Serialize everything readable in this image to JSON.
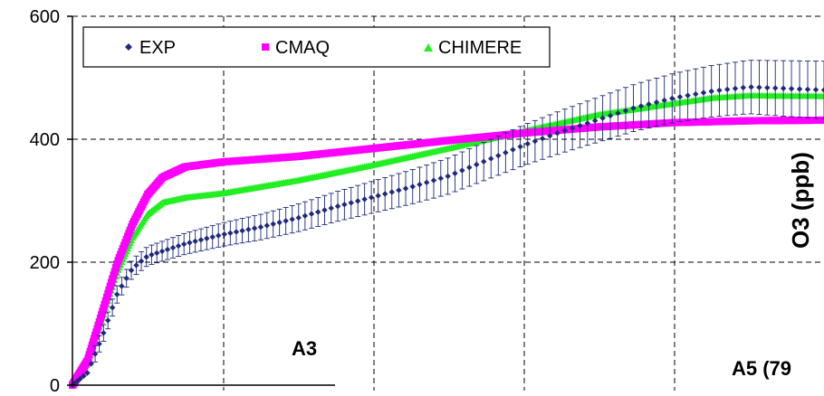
{
  "chart_data": {
    "type": "line",
    "ylabel": "O3 (ppb)",
    "ylim": [
      0,
      600
    ],
    "y_ticks": [
      "0",
      "200",
      "400",
      "600"
    ],
    "grid": true,
    "legend_position": "top-left",
    "annotations": [
      "A3",
      "A5 (79"
    ],
    "series": [
      {
        "name": "EXP",
        "color": "#1f2a7a",
        "marker": "diamond",
        "error_bars": true,
        "points": [
          [
            0,
            0
          ],
          [
            0.02,
            20
          ],
          [
            0.04,
            80
          ],
          [
            0.06,
            150
          ],
          [
            0.08,
            190
          ],
          [
            0.1,
            210
          ],
          [
            0.15,
            230
          ],
          [
            0.2,
            245
          ],
          [
            0.25,
            257
          ],
          [
            0.3,
            272
          ],
          [
            0.35,
            290
          ],
          [
            0.4,
            306
          ],
          [
            0.45,
            322
          ],
          [
            0.5,
            340
          ],
          [
            0.55,
            365
          ],
          [
            0.6,
            390
          ],
          [
            0.65,
            412
          ],
          [
            0.7,
            432
          ],
          [
            0.75,
            452
          ],
          [
            0.8,
            467
          ],
          [
            0.85,
            478
          ],
          [
            0.9,
            485
          ],
          [
            1.0,
            480
          ]
        ]
      },
      {
        "name": "CMAQ",
        "color": "#ff00ff",
        "marker": "square",
        "points": [
          [
            0,
            0
          ],
          [
            0.02,
            40
          ],
          [
            0.04,
            120
          ],
          [
            0.06,
            200
          ],
          [
            0.08,
            262
          ],
          [
            0.1,
            310
          ],
          [
            0.12,
            338
          ],
          [
            0.15,
            355
          ],
          [
            0.2,
            363
          ],
          [
            0.3,
            372
          ],
          [
            0.4,
            385
          ],
          [
            0.5,
            398
          ],
          [
            0.6,
            410
          ],
          [
            0.7,
            420
          ],
          [
            0.8,
            427
          ],
          [
            0.9,
            430
          ],
          [
            1.0,
            431
          ]
        ]
      },
      {
        "name": "CHIMERE",
        "color": "#22ee22",
        "marker": "triangle",
        "points": [
          [
            0,
            0
          ],
          [
            0.02,
            35
          ],
          [
            0.04,
            110
          ],
          [
            0.06,
            185
          ],
          [
            0.08,
            240
          ],
          [
            0.1,
            278
          ],
          [
            0.12,
            297
          ],
          [
            0.15,
            305
          ],
          [
            0.2,
            312
          ],
          [
            0.3,
            333
          ],
          [
            0.4,
            358
          ],
          [
            0.5,
            385
          ],
          [
            0.6,
            413
          ],
          [
            0.7,
            440
          ],
          [
            0.8,
            458
          ],
          [
            0.85,
            467
          ],
          [
            0.9,
            471
          ],
          [
            1.0,
            470
          ]
        ]
      }
    ]
  }
}
